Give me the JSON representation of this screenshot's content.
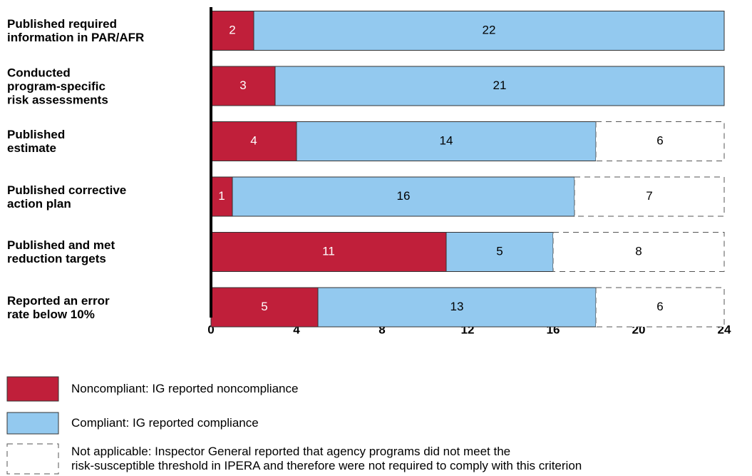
{
  "chart_data": {
    "type": "bar",
    "orientation": "horizontal",
    "stacked": true,
    "categories": [
      "Published required\ninformation in PAR/AFR",
      "Conducted\nprogram-specific\nrisk assessments",
      "Published\nestimate",
      "Published corrective\naction plan",
      "Published and met\nreduction targets",
      "Reported an error\nrate below 10%"
    ],
    "series": [
      {
        "name": "Noncompliant: IG reported noncompliance",
        "color": "#c01f3a",
        "label_color": "#ffffff",
        "values": [
          2,
          3,
          4,
          1,
          11,
          5
        ]
      },
      {
        "name": "Compliant: IG reported compliance",
        "color": "#93c9ef",
        "label_color": "#000000",
        "values": [
          22,
          21,
          14,
          16,
          5,
          13
        ]
      },
      {
        "name": "Not applicable: Inspector General reported that agency programs did not meet the\nrisk-susceptible threshold in IPERA and therefore were not required to comply with this criterion",
        "color": "#ffffff",
        "label_color": "#000000",
        "style": "dashed",
        "values": [
          null,
          null,
          6,
          7,
          8,
          6
        ]
      }
    ],
    "xlim": [
      0,
      24
    ],
    "xticks": [
      0,
      4,
      8,
      12,
      16,
      20,
      24
    ]
  }
}
